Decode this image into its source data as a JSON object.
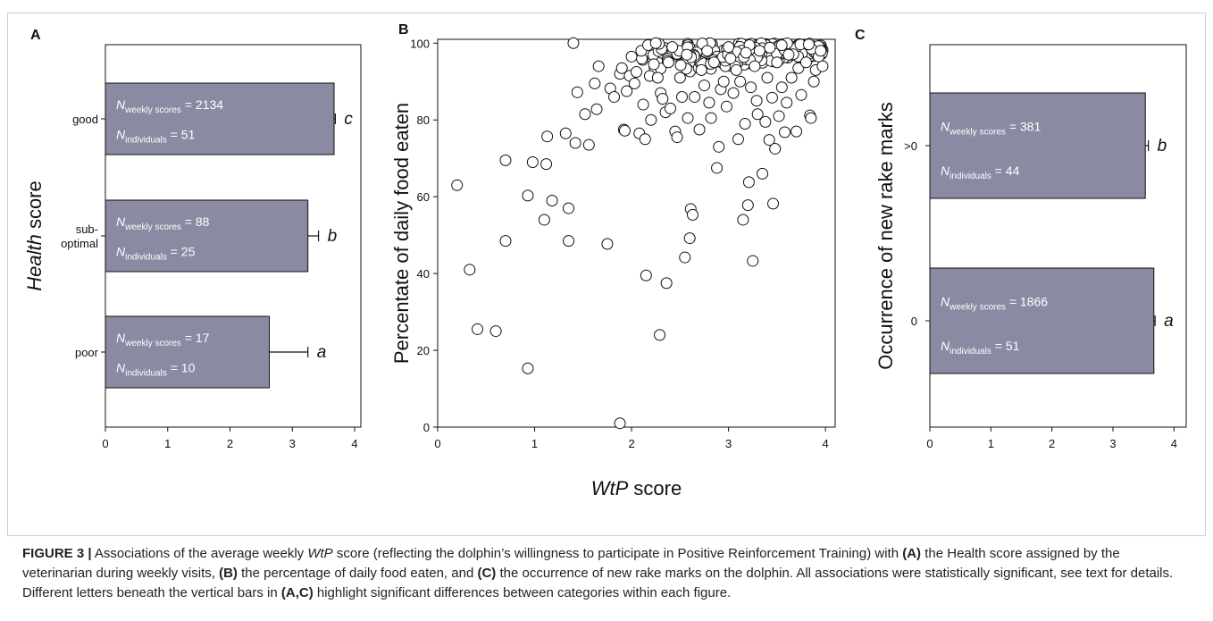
{
  "caption": {
    "label": "FIGURE 3 |",
    "parts": [
      {
        "t": " Associations of the average weekly "
      },
      {
        "t": "WtP",
        "i": true
      },
      {
        "t": " score (reflecting the dolphin’s willingness to participate in Positive Reinforcement Training) with "
      },
      {
        "t": "(A)",
        "b": true
      },
      {
        "t": " the Health score assigned by the veterinarian during weekly visits, "
      },
      {
        "t": "(B)",
        "b": true
      },
      {
        "t": " the percentage of daily food eaten, and "
      },
      {
        "t": "(C)",
        "b": true
      },
      {
        "t": " the occurrence of new rake marks on the dolphin. All associations were statistically significant, see text for details. Different letters beneath the vertical bars in "
      },
      {
        "t": "(A,C)",
        "b": true
      },
      {
        "t": " highlight significant differences between categories within each figure."
      }
    ]
  },
  "chart_data": [
    {
      "panel": "A",
      "type": "bar",
      "orientation": "horizontal",
      "ylabel_italic": "Health",
      "ylabel_rest": " score",
      "categories": [
        "good",
        "sub-optimal",
        "poor"
      ],
      "category_lines": [
        [
          "good"
        ],
        [
          "sub-",
          "optimal"
        ],
        [
          "poor"
        ]
      ],
      "values": [
        3.67,
        3.25,
        2.63
      ],
      "errors": [
        0.02,
        0.17,
        0.62
      ],
      "letters": [
        "c",
        "b",
        "a"
      ],
      "n_weekly": [
        2134,
        88,
        17
      ],
      "n_individuals": [
        51,
        25,
        10
      ],
      "n_weekly_label": "N",
      "n_weekly_sub": "weekly scores",
      "n_ind_sub": "individuals",
      "xlim": [
        0,
        4.1
      ],
      "xticks": [
        0,
        1,
        2,
        3,
        4
      ]
    },
    {
      "panel": "B",
      "type": "scatter",
      "xlabel_italic": "WtP",
      "xlabel_rest": " score",
      "ylabel": "Percentate of daily food eaten",
      "xlim": [
        0,
        4.1
      ],
      "ylim": [
        0,
        101
      ],
      "xticks": [
        0,
        1,
        2,
        3,
        4
      ],
      "yticks": [
        0,
        20,
        40,
        60,
        80,
        100
      ],
      "points": [
        [
          0.2,
          63
        ],
        [
          0.33,
          41
        ],
        [
          0.41,
          25.5
        ],
        [
          0.6,
          25
        ],
        [
          0.7,
          69.5
        ],
        [
          0.7,
          48.5
        ],
        [
          0.93,
          60.3
        ],
        [
          0.93,
          15.3
        ],
        [
          0.98,
          69
        ],
        [
          1.1,
          54
        ],
        [
          1.12,
          68.5
        ],
        [
          1.13,
          75.7
        ],
        [
          1.18,
          59
        ],
        [
          1.32,
          76.5
        ],
        [
          1.35,
          57
        ],
        [
          1.35,
          48.5
        ],
        [
          1.4,
          100
        ],
        [
          1.42,
          74
        ],
        [
          1.44,
          87.2
        ],
        [
          1.52,
          81.5
        ],
        [
          1.56,
          73.5
        ],
        [
          1.62,
          89.5
        ],
        [
          1.64,
          82.8
        ],
        [
          1.66,
          94
        ],
        [
          1.75,
          47.7
        ],
        [
          1.78,
          88.2
        ],
        [
          1.82,
          86
        ],
        [
          1.88,
          92
        ],
        [
          1.88,
          1
        ],
        [
          1.9,
          93.5
        ],
        [
          1.92,
          77.5
        ],
        [
          1.93,
          77.2
        ],
        [
          1.95,
          87.5
        ],
        [
          1.98,
          91.5
        ],
        [
          2.0,
          96.5
        ],
        [
          2.03,
          89.5
        ],
        [
          2.05,
          92.5
        ],
        [
          2.08,
          76.5
        ],
        [
          2.1,
          98
        ],
        [
          2.12,
          84
        ],
        [
          2.14,
          75
        ],
        [
          2.15,
          39.5
        ],
        [
          2.17,
          99.5
        ],
        [
          2.2,
          80
        ],
        [
          2.23,
          94.5
        ],
        [
          2.25,
          100
        ],
        [
          2.27,
          91
        ],
        [
          2.29,
          24
        ],
        [
          2.3,
          87
        ],
        [
          2.32,
          85.5
        ],
        [
          2.35,
          82
        ],
        [
          2.36,
          37.5
        ],
        [
          2.38,
          95
        ],
        [
          2.4,
          83
        ],
        [
          2.42,
          99
        ],
        [
          2.45,
          77
        ],
        [
          2.47,
          75.5
        ],
        [
          2.5,
          91
        ],
        [
          2.52,
          86
        ],
        [
          2.55,
          44.2
        ],
        [
          2.57,
          97
        ],
        [
          2.58,
          80.5
        ],
        [
          2.6,
          49.2
        ],
        [
          2.61,
          56.8
        ],
        [
          2.63,
          55.3
        ],
        [
          2.65,
          86
        ],
        [
          2.7,
          77.5
        ],
        [
          2.72,
          93
        ],
        [
          2.75,
          89
        ],
        [
          2.78,
          98
        ],
        [
          2.8,
          84.5
        ],
        [
          2.82,
          80.5
        ],
        [
          2.85,
          95
        ],
        [
          2.88,
          67.5
        ],
        [
          2.9,
          73
        ],
        [
          2.92,
          88
        ],
        [
          2.95,
          90
        ],
        [
          2.98,
          83.5
        ],
        [
          3.0,
          99
        ],
        [
          3.02,
          96
        ],
        [
          3.05,
          87
        ],
        [
          3.08,
          93
        ],
        [
          3.1,
          75
        ],
        [
          3.12,
          90
        ],
        [
          3.15,
          54
        ],
        [
          3.17,
          79
        ],
        [
          3.18,
          97.5
        ],
        [
          3.2,
          57.8
        ],
        [
          3.21,
          63.8
        ],
        [
          3.23,
          88.5
        ],
        [
          3.25,
          43.3
        ],
        [
          3.27,
          94
        ],
        [
          3.29,
          85
        ],
        [
          3.3,
          81.5
        ],
        [
          3.32,
          98
        ],
        [
          3.35,
          66
        ],
        [
          3.38,
          79.5
        ],
        [
          3.4,
          91
        ],
        [
          3.42,
          74.8
        ],
        [
          3.45,
          85.8
        ],
        [
          3.46,
          58.2
        ],
        [
          3.48,
          72.5
        ],
        [
          3.5,
          95
        ],
        [
          3.52,
          81
        ],
        [
          3.55,
          88.5
        ],
        [
          3.58,
          76.8
        ],
        [
          3.6,
          84.5
        ],
        [
          3.62,
          97
        ],
        [
          3.65,
          91
        ],
        [
          3.7,
          77
        ],
        [
          3.72,
          93.5
        ],
        [
          3.75,
          86.5
        ],
        [
          3.8,
          95
        ],
        [
          3.84,
          81.2
        ],
        [
          3.85,
          80.5
        ],
        [
          3.88,
          90
        ],
        [
          3.9,
          93
        ],
        [
          3.93,
          96.5
        ],
        [
          3.95,
          98
        ],
        [
          3.97,
          94
        ]
      ],
      "dense_band": {
        "x_range": [
          2.1,
          4.0
        ],
        "y_range": [
          91,
          100
        ],
        "count": 240
      }
    },
    {
      "panel": "C",
      "type": "bar",
      "orientation": "horizontal",
      "ylabel": "Occurrence of new rake marks",
      "categories": [
        ">0",
        "0"
      ],
      "category_lines": [
        [
          ">0"
        ],
        [
          "0"
        ]
      ],
      "values": [
        3.53,
        3.67
      ],
      "errors": [
        0.05,
        0.02
      ],
      "letters": [
        "b",
        "a"
      ],
      "n_weekly": [
        381,
        1866
      ],
      "n_individuals": [
        44,
        51
      ],
      "n_weekly_label": "N",
      "n_weekly_sub": "weekly scores",
      "n_ind_sub": "individuals",
      "xlim": [
        0,
        4.2
      ],
      "xticks": [
        0,
        1,
        2,
        3,
        4
      ]
    }
  ]
}
